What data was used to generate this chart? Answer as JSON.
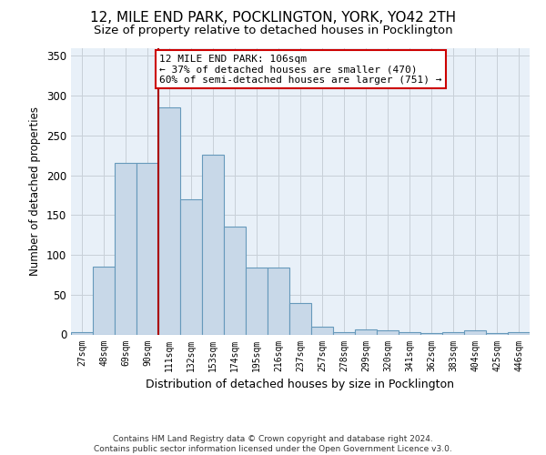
{
  "title": "12, MILE END PARK, POCKLINGTON, YORK, YO42 2TH",
  "subtitle": "Size of property relative to detached houses in Pocklington",
  "xlabel": "Distribution of detached houses by size in Pocklington",
  "ylabel": "Number of detached properties",
  "categories": [
    "27sqm",
    "48sqm",
    "69sqm",
    "90sqm",
    "111sqm",
    "132sqm",
    "153sqm",
    "174sqm",
    "195sqm",
    "216sqm",
    "237sqm",
    "257sqm",
    "278sqm",
    "299sqm",
    "320sqm",
    "341sqm",
    "362sqm",
    "383sqm",
    "404sqm",
    "425sqm",
    "446sqm"
  ],
  "bar_heights": [
    3,
    85,
    216,
    216,
    285,
    170,
    226,
    136,
    84,
    84,
    40,
    10,
    3,
    6,
    5,
    3,
    2,
    3,
    5,
    2,
    3
  ],
  "bar_color": "#c8d8e8",
  "bar_edge_color": "#6699bb",
  "vline_color": "#aa0000",
  "annotation_text": "12 MILE END PARK: 106sqm\n← 37% of detached houses are smaller (470)\n60% of semi-detached houses are larger (751) →",
  "annotation_box_color": "#ffffff",
  "annotation_box_edge": "#cc0000",
  "background_color": "#ffffff",
  "plot_bg_color": "#e8f0f8",
  "grid_color": "#c8d0d8",
  "title_fontsize": 11,
  "subtitle_fontsize": 9.5,
  "footer": "Contains HM Land Registry data © Crown copyright and database right 2024.\nContains public sector information licensed under the Open Government Licence v3.0.",
  "ylim": [
    0,
    360
  ],
  "yticks": [
    0,
    50,
    100,
    150,
    200,
    250,
    300,
    350
  ]
}
